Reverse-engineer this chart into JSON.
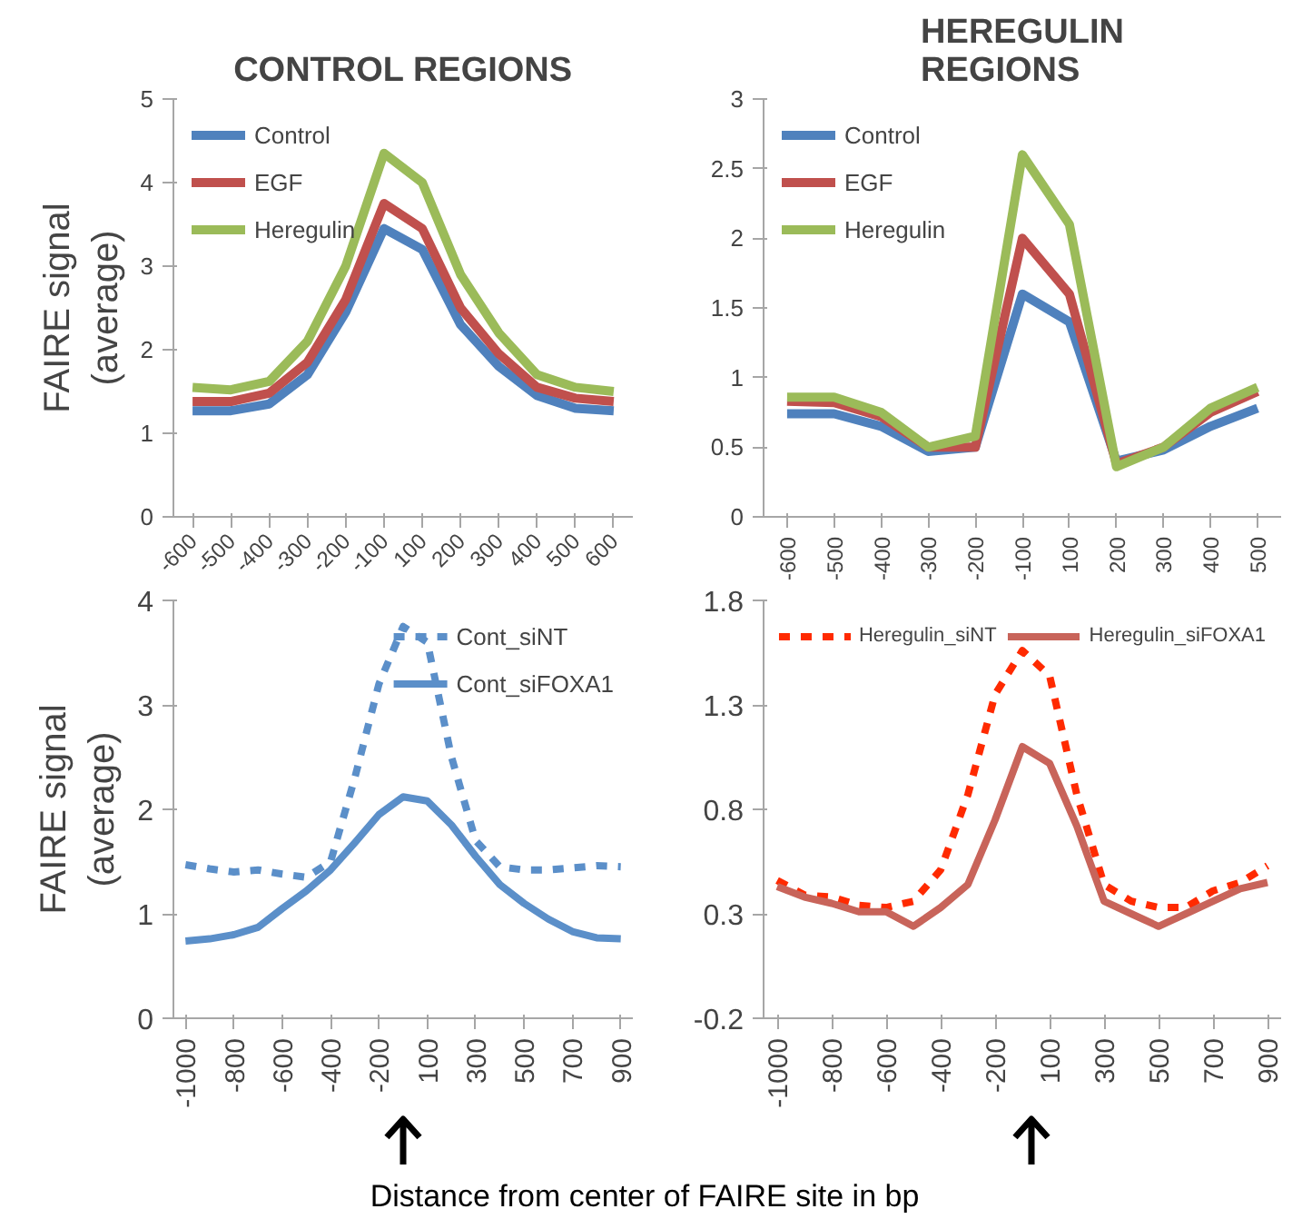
{
  "chart_data": [
    {
      "type": "line",
      "title": "CONTROL REGIONS",
      "ylabel": "FAIRE signal\n(average)",
      "categories": [
        "-600",
        "-500",
        "-400",
        "-300",
        "-200",
        "-100",
        "100",
        "200",
        "300",
        "400",
        "500",
        "600"
      ],
      "ylim": [
        0,
        5
      ],
      "yticks": [
        0,
        1,
        2,
        3,
        4,
        5
      ],
      "legend": "top left",
      "series": [
        {
          "name": "Control",
          "color": "#4f81bd",
          "values": [
            1.27,
            1.27,
            1.35,
            1.7,
            2.45,
            3.45,
            3.2,
            2.3,
            1.8,
            1.45,
            1.3,
            1.27
          ]
        },
        {
          "name": "EGF",
          "color": "#c0504d",
          "values": [
            1.38,
            1.38,
            1.48,
            1.85,
            2.6,
            3.75,
            3.45,
            2.5,
            1.95,
            1.55,
            1.42,
            1.38
          ]
        },
        {
          "name": "Heregulin",
          "color": "#9bbb59",
          "values": [
            1.55,
            1.52,
            1.62,
            2.1,
            3.0,
            4.35,
            4.0,
            2.9,
            2.2,
            1.7,
            1.55,
            1.5
          ]
        }
      ]
    },
    {
      "type": "line",
      "title": "HEREGULIN\nREGIONS",
      "categories": [
        "-600",
        "-500",
        "-400",
        "-300",
        "-200",
        "-100",
        "100",
        "200",
        "300",
        "400",
        "500"
      ],
      "ylim": [
        0,
        3
      ],
      "yticks": [
        0,
        0.5,
        1,
        1.5,
        2,
        2.5,
        3
      ],
      "legend": "top left",
      "series": [
        {
          "name": "Control",
          "color": "#4f81bd",
          "values": [
            0.74,
            0.74,
            0.65,
            0.47,
            0.5,
            1.6,
            1.4,
            0.4,
            0.48,
            0.65,
            0.78
          ]
        },
        {
          "name": "EGF",
          "color": "#c0504d",
          "values": [
            0.83,
            0.82,
            0.72,
            0.5,
            0.5,
            2.0,
            1.6,
            0.38,
            0.5,
            0.75,
            0.9
          ]
        },
        {
          "name": "Heregulin",
          "color": "#9bbb59",
          "values": [
            0.86,
            0.86,
            0.75,
            0.5,
            0.58,
            2.6,
            2.1,
            0.36,
            0.5,
            0.78,
            0.93
          ]
        }
      ]
    },
    {
      "type": "line",
      "ylabel": "FAIRE signal\n(average)",
      "categories": [
        "-1000",
        null,
        "-800",
        null,
        "-600",
        null,
        "-400",
        null,
        "-200",
        null,
        "100",
        null,
        "300",
        null,
        "500",
        null,
        "700",
        null,
        "900"
      ],
      "ylim": [
        0,
        4
      ],
      "yticks": [
        0,
        1,
        2,
        3,
        4
      ],
      "legend": "top right",
      "annotations": [
        "Distance from center of FAIRE site in bp"
      ],
      "series": [
        {
          "name": "Cont_siNT",
          "color": "#5b8fc9",
          "line_style": "dashed",
          "values": [
            1.47,
            1.43,
            1.4,
            1.42,
            1.38,
            1.35,
            1.5,
            2.3,
            3.2,
            3.75,
            3.6,
            2.5,
            1.7,
            1.45,
            1.42,
            1.42,
            1.44,
            1.46,
            1.45
          ]
        },
        {
          "name": "Cont_siFOXA1",
          "color": "#5b8fc9",
          "line_style": "solid",
          "values": [
            0.74,
            0.76,
            0.8,
            0.87,
            1.05,
            1.22,
            1.42,
            1.68,
            1.95,
            2.12,
            2.08,
            1.85,
            1.55,
            1.28,
            1.1,
            0.95,
            0.83,
            0.77,
            0.76
          ]
        }
      ]
    },
    {
      "type": "line",
      "categories": [
        "-1000",
        null,
        "-800",
        null,
        "-600",
        null,
        "-400",
        null,
        "-200",
        null,
        "100",
        null,
        "300",
        null,
        "500",
        null,
        "700",
        null,
        "900"
      ],
      "ylim": [
        -0.2,
        1.8
      ],
      "yticks": [
        -0.2,
        0.3,
        0.8,
        1.3,
        1.8
      ],
      "legend": "top",
      "series": [
        {
          "name": "Heregulin_siNT",
          "color": "#ff2a00",
          "line_style": "dashed",
          "values": [
            0.46,
            0.39,
            0.38,
            0.34,
            0.33,
            0.36,
            0.51,
            0.87,
            1.35,
            1.56,
            1.44,
            0.87,
            0.44,
            0.36,
            0.33,
            0.33,
            0.41,
            0.45,
            0.53
          ]
        },
        {
          "name": "Heregulin_siFOXA1",
          "color": "#c8645a",
          "line_style": "solid",
          "values": [
            0.43,
            0.38,
            0.35,
            0.31,
            0.31,
            0.24,
            0.33,
            0.44,
            0.75,
            1.1,
            1.02,
            0.72,
            0.36,
            0.3,
            0.24,
            0.3,
            0.36,
            0.42,
            0.45
          ]
        }
      ]
    }
  ]
}
